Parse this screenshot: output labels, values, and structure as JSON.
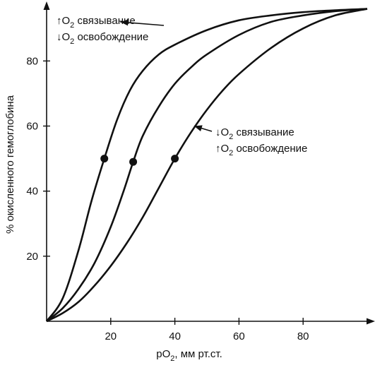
{
  "chart_data": {
    "type": "line",
    "title": "",
    "xlabel": "pO",
    "xlabel_sub": "2",
    "xlabel_rest": ", мм рт.ст.",
    "ylabel": "% окисленного гемоглобина",
    "xlim": [
      0,
      100
    ],
    "ylim": [
      0,
      97
    ],
    "x_ticks": [
      20,
      40,
      60,
      80
    ],
    "y_ticks": [
      20,
      40,
      60,
      80
    ],
    "grid": false,
    "colors": {
      "line": "#111111",
      "background": "#ffffff"
    },
    "series": [
      {
        "x": [
          0,
          5,
          10,
          14,
          18,
          22,
          26,
          30,
          35,
          40,
          50,
          60,
          70,
          80,
          90,
          100
        ],
        "y": [
          0,
          7,
          22,
          37,
          50,
          62,
          71,
          77,
          82,
          85,
          89.5,
          92.5,
          94,
          95,
          95.6,
          96
        ],
        "p50": [
          18,
          50
        ]
      },
      {
        "x": [
          0,
          5,
          10,
          15,
          20,
          24,
          27,
          30,
          35,
          40,
          45,
          50,
          60,
          70,
          80,
          90,
          100
        ],
        "y": [
          0,
          4,
          10,
          18,
          29,
          40,
          49,
          57,
          66,
          73,
          78,
          82,
          88,
          92,
          94,
          95.3,
          96
        ],
        "p50": [
          27,
          49
        ]
      },
      {
        "x": [
          0,
          5,
          10,
          15,
          20,
          25,
          30,
          35,
          40,
          45,
          50,
          55,
          60,
          70,
          80,
          90,
          100
        ],
        "y": [
          0,
          2.5,
          6,
          11,
          17,
          24,
          32,
          41,
          50,
          58,
          65,
          71,
          76,
          84,
          90,
          94,
          96
        ],
        "p50": [
          40,
          50
        ]
      }
    ],
    "annotations": [
      {
        "line1_arrow": "↑",
        "line1_pre": "O",
        "line1_sub": "2",
        "line1_post": " связывание",
        "line2_arrow": "↓",
        "line2_pre": "O",
        "line2_sub": "2",
        "line2_post": " освобождение",
        "points_to_series": 0,
        "arrow_target": [
          23,
          92
        ]
      },
      {
        "line1_arrow": "↓",
        "line1_pre": "O",
        "line1_sub": "2",
        "line1_post": " связывание",
        "line2_arrow": "↑",
        "line2_pre": "O",
        "line2_sub": "2",
        "line2_post": " освобождение",
        "points_to_series": 2,
        "arrow_target": [
          46,
          60
        ]
      }
    ]
  }
}
